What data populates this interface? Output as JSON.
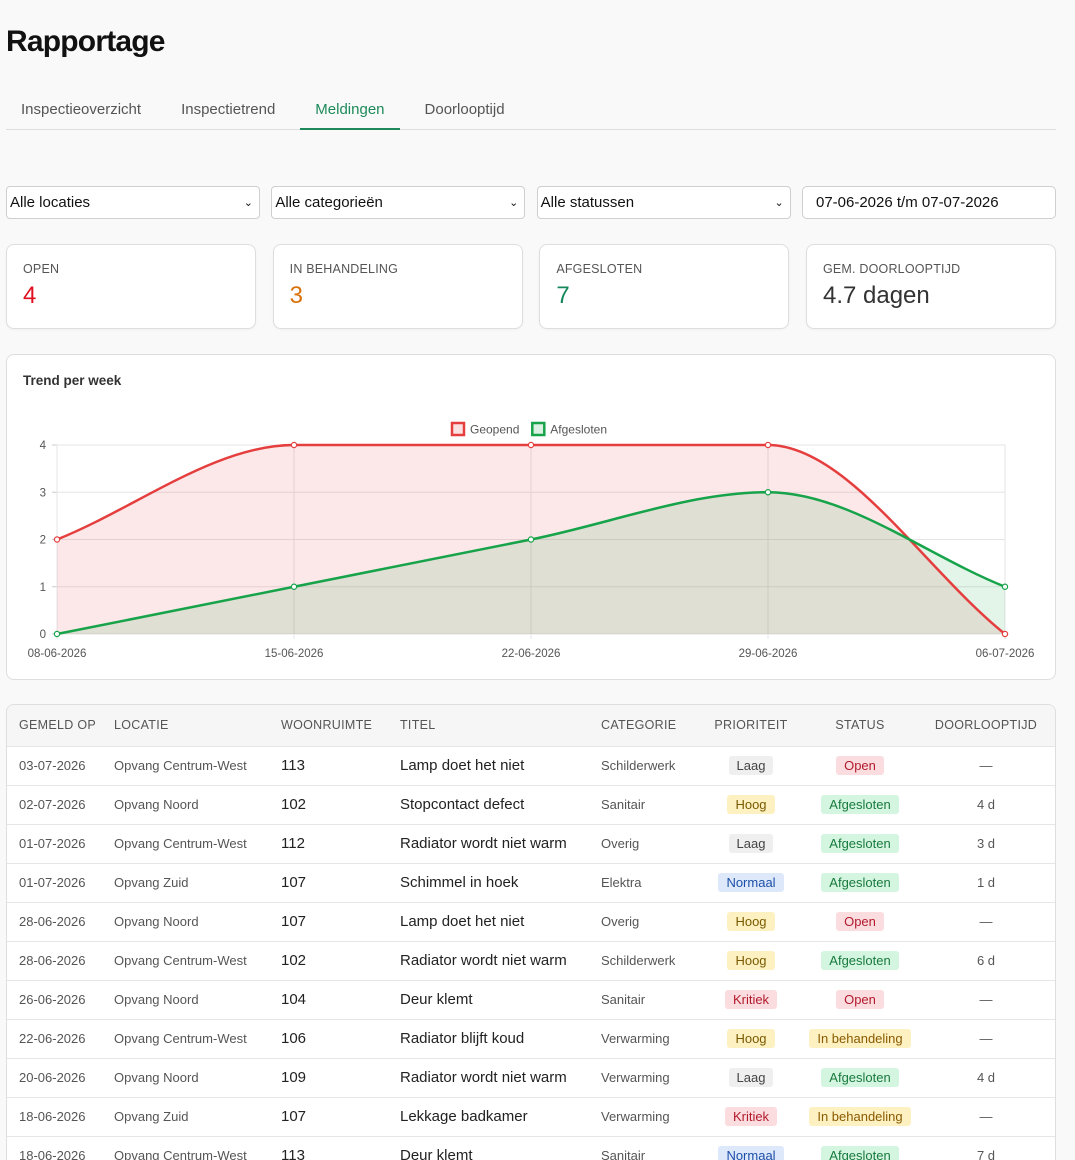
{
  "page": {
    "title": "Rapportage"
  },
  "tabs": [
    {
      "label": "Inspectieoverzicht",
      "active": false
    },
    {
      "label": "Inspectietrend",
      "active": false
    },
    {
      "label": "Meldingen",
      "active": true
    },
    {
      "label": "Doorlooptijd",
      "active": false
    }
  ],
  "filters": {
    "location": "Alle locaties",
    "category": "Alle categorieën",
    "status": "Alle statussen",
    "date_range": "07-06-2026 t/m 07-07-2026"
  },
  "stats": [
    {
      "label": "OPEN",
      "value": "4",
      "color": "#e0101f"
    },
    {
      "label": "IN BEHANDELING",
      "value": "3",
      "color": "#d9720a"
    },
    {
      "label": "AFGESLOTEN",
      "value": "7",
      "color": "#14885a"
    },
    {
      "label": "GEM. DOORLOOPTIJD",
      "value": "4.7 dagen",
      "color": "#333333"
    }
  ],
  "chart": {
    "title": "Trend per week"
  },
  "chart_data": {
    "type": "line",
    "categories": [
      "08-06-2026",
      "15-06-2026",
      "22-06-2026",
      "29-06-2026",
      "06-07-2026"
    ],
    "series": [
      {
        "name": "Geopend",
        "values": [
          2,
          4,
          4,
          4,
          0
        ],
        "color": "#e53e3e"
      },
      {
        "name": "Afgesloten",
        "values": [
          0,
          1,
          2,
          3,
          1
        ],
        "color": "#16a34a"
      }
    ],
    "ylim": [
      0,
      4
    ],
    "yticks": [
      0,
      1,
      2,
      3,
      4
    ],
    "fill": true,
    "grid": true,
    "legend": "top-center"
  },
  "table": {
    "columns": [
      "GEMELD OP",
      "LOCATIE",
      "WOONRUIMTE",
      "TITEL",
      "CATEGORIE",
      "PRIORITEIT",
      "STATUS",
      "DOORLOOPTIJD"
    ],
    "rows": [
      {
        "date": "03-07-2026",
        "location": "Opvang Centrum-West",
        "room": "113",
        "title": "Lamp doet het niet",
        "category": "Schilderwerk",
        "priority": "Laag",
        "status": "Open",
        "duration": "—"
      },
      {
        "date": "02-07-2026",
        "location": "Opvang Noord",
        "room": "102",
        "title": "Stopcontact defect",
        "category": "Sanitair",
        "priority": "Hoog",
        "status": "Afgesloten",
        "duration": "4 d"
      },
      {
        "date": "01-07-2026",
        "location": "Opvang Centrum-West",
        "room": "112",
        "title": "Radiator wordt niet warm",
        "category": "Overig",
        "priority": "Laag",
        "status": "Afgesloten",
        "duration": "3 d"
      },
      {
        "date": "01-07-2026",
        "location": "Opvang Zuid",
        "room": "107",
        "title": "Schimmel in hoek",
        "category": "Elektra",
        "priority": "Normaal",
        "status": "Afgesloten",
        "duration": "1 d"
      },
      {
        "date": "28-06-2026",
        "location": "Opvang Noord",
        "room": "107",
        "title": "Lamp doet het niet",
        "category": "Overig",
        "priority": "Hoog",
        "status": "Open",
        "duration": "—"
      },
      {
        "date": "28-06-2026",
        "location": "Opvang Centrum-West",
        "room": "102",
        "title": "Radiator wordt niet warm",
        "category": "Schilderwerk",
        "priority": "Hoog",
        "status": "Afgesloten",
        "duration": "6 d"
      },
      {
        "date": "26-06-2026",
        "location": "Opvang Noord",
        "room": "104",
        "title": "Deur klemt",
        "category": "Sanitair",
        "priority": "Kritiek",
        "status": "Open",
        "duration": "—"
      },
      {
        "date": "22-06-2026",
        "location": "Opvang Centrum-West",
        "room": "106",
        "title": "Radiator blijft koud",
        "category": "Verwarming",
        "priority": "Hoog",
        "status": "In behandeling",
        "duration": "—"
      },
      {
        "date": "20-06-2026",
        "location": "Opvang Noord",
        "room": "109",
        "title": "Radiator wordt niet warm",
        "category": "Verwarming",
        "priority": "Laag",
        "status": "Afgesloten",
        "duration": "4 d"
      },
      {
        "date": "18-06-2026",
        "location": "Opvang Zuid",
        "room": "107",
        "title": "Lekkage badkamer",
        "category": "Verwarming",
        "priority": "Kritiek",
        "status": "In behandeling",
        "duration": "—"
      },
      {
        "date": "18-06-2026",
        "location": "Opvang Centrum-West",
        "room": "113",
        "title": "Deur klemt",
        "category": "Sanitair",
        "priority": "Normaal",
        "status": "Afgesloten",
        "duration": "7 d"
      }
    ]
  }
}
